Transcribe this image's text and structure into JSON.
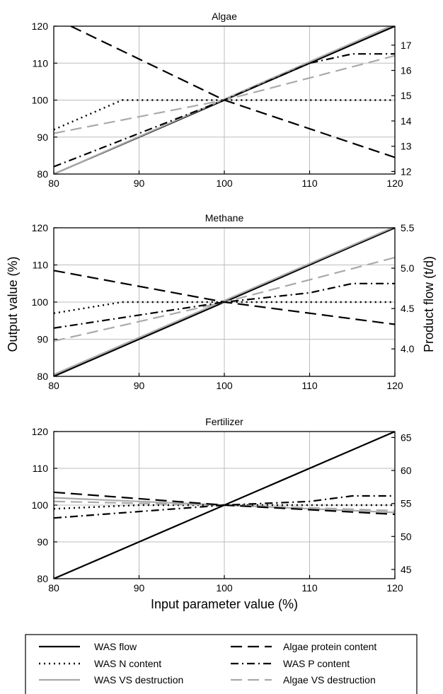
{
  "figure": {
    "xlabel": "Input parameter value (%)",
    "ylabel_left": "Output value (%)",
    "ylabel_right": "Product flow (t/d)"
  },
  "legend": {
    "placement": "bottom",
    "entries": [
      {
        "key": "was_flow",
        "label": "WAS flow",
        "color": "#000000",
        "style": "solid"
      },
      {
        "key": "algae_protein",
        "label": "Algae protein content",
        "color": "#000000",
        "style": "dashed"
      },
      {
        "key": "was_n",
        "label": "WAS N content",
        "color": "#000000",
        "style": "dotted"
      },
      {
        "key": "was_p",
        "label": "WAS P content",
        "color": "#000000",
        "style": "dashdot"
      },
      {
        "key": "was_vs",
        "label": "WAS VS destruction",
        "color": "#aaaaaa",
        "style": "solid"
      },
      {
        "key": "algae_vs",
        "label": "Algae VS destruction",
        "color": "#aaaaaa",
        "style": "dashed"
      }
    ]
  },
  "chart_data": [
    {
      "type": "line",
      "title": "Algae",
      "xlim": [
        80,
        120
      ],
      "ylim": [
        80,
        120
      ],
      "xticks": [
        "80",
        "90",
        "100",
        "110",
        "120"
      ],
      "yticks": [
        "80",
        "90",
        "100",
        "110",
        "120"
      ],
      "right_ylim": [
        11.9,
        17.75
      ],
      "right_yticks": [
        "12",
        "13",
        "14",
        "15",
        "16",
        "17"
      ],
      "grid": true,
      "series": [
        {
          "key": "was_flow",
          "points": [
            [
              80,
              80
            ],
            [
              120,
              120
            ]
          ]
        },
        {
          "key": "was_vs",
          "points": [
            [
              80,
              80
            ],
            [
              120,
              120.5
            ]
          ]
        },
        {
          "key": "was_n",
          "points": [
            [
              80,
              92
            ],
            [
              88,
              100
            ],
            [
              120,
              100
            ]
          ]
        },
        {
          "key": "algae_vs",
          "points": [
            [
              80,
              91
            ],
            [
              100,
              100
            ],
            [
              120,
              112
            ]
          ]
        },
        {
          "key": "algae_protein",
          "points": [
            [
              82,
              120
            ],
            [
              100,
              100
            ],
            [
              120,
              84.5
            ]
          ]
        },
        {
          "key": "was_p",
          "points": [
            [
              80,
              82
            ],
            [
              100,
              100
            ],
            [
              110,
              110
            ],
            [
              115,
              112.5
            ],
            [
              120,
              112.5
            ]
          ]
        }
      ]
    },
    {
      "type": "line",
      "title": "Methane",
      "xlim": [
        80,
        120
      ],
      "ylim": [
        80,
        120
      ],
      "xticks": [
        "80",
        "90",
        "100",
        "110",
        "120"
      ],
      "yticks": [
        "80",
        "90",
        "100",
        "110",
        "120"
      ],
      "right_ylim": [
        3.66,
        5.5
      ],
      "right_yticks": [
        "4.0",
        "4.5",
        "5.0",
        "5.5"
      ],
      "grid": true,
      "series": [
        {
          "key": "was_flow",
          "points": [
            [
              80,
              80
            ],
            [
              120,
              120
            ]
          ]
        },
        {
          "key": "was_vs",
          "points": [
            [
              80,
              80.5
            ],
            [
              120,
              120.3
            ]
          ]
        },
        {
          "key": "was_n",
          "points": [
            [
              80,
              97
            ],
            [
              88,
              100
            ],
            [
              120,
              100
            ]
          ]
        },
        {
          "key": "algae_vs",
          "points": [
            [
              80,
              89.5
            ],
            [
              100,
              100
            ],
            [
              120,
              112
            ]
          ]
        },
        {
          "key": "algae_protein",
          "points": [
            [
              80,
              108.5
            ],
            [
              100,
              100
            ],
            [
              120,
              94
            ]
          ]
        },
        {
          "key": "was_p",
          "points": [
            [
              80,
              93
            ],
            [
              100,
              100
            ],
            [
              110,
              102.5
            ],
            [
              115,
              105
            ],
            [
              120,
              105
            ]
          ]
        }
      ]
    },
    {
      "type": "line",
      "title": "Fertilizer",
      "xlim": [
        80,
        120
      ],
      "ylim": [
        80,
        120
      ],
      "xticks": [
        "80",
        "90",
        "100",
        "110",
        "120"
      ],
      "yticks": [
        "80",
        "90",
        "100",
        "110",
        "120"
      ],
      "right_ylim": [
        43.6,
        65.9
      ],
      "right_yticks": [
        "45",
        "50",
        "55",
        "60",
        "65"
      ],
      "grid": true,
      "series": [
        {
          "key": "was_flow",
          "points": [
            [
              80,
              80
            ],
            [
              120,
              120
            ]
          ]
        },
        {
          "key": "was_vs",
          "points": [
            [
              80,
              102
            ],
            [
              120,
              98
            ]
          ]
        },
        {
          "key": "was_n",
          "points": [
            [
              80,
              99
            ],
            [
              90,
              100
            ],
            [
              120,
              100
            ]
          ]
        },
        {
          "key": "algae_vs",
          "points": [
            [
              80,
              101
            ],
            [
              100,
              100
            ],
            [
              120,
              98.5
            ]
          ]
        },
        {
          "key": "algae_protein",
          "points": [
            [
              80,
              103.5
            ],
            [
              100,
              100
            ],
            [
              120,
              97.5
            ]
          ]
        },
        {
          "key": "was_p",
          "points": [
            [
              80,
              96.5
            ],
            [
              100,
              100
            ],
            [
              110,
              101
            ],
            [
              115,
              102.5
            ],
            [
              120,
              102.5
            ]
          ]
        }
      ]
    }
  ]
}
